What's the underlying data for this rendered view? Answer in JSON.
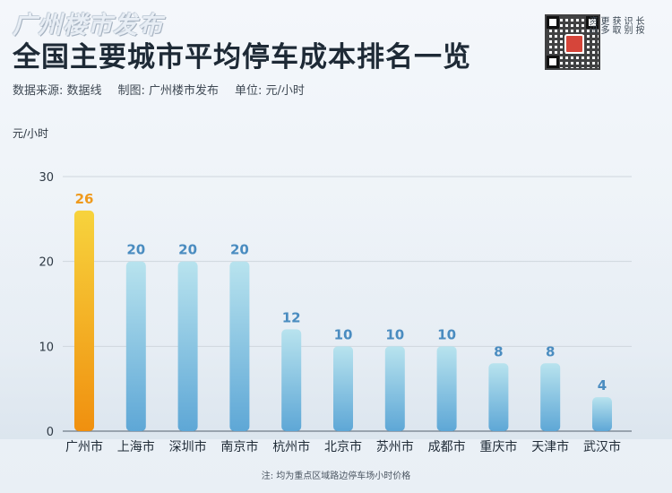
{
  "header": {
    "brand": "广州楼市发布",
    "title": "全国主要城市平均停车成本排名一览",
    "source": "数据来源: 数据线",
    "maker": "制图: 广州楼市发布",
    "unit": "单位:  元/小时"
  },
  "qr": {
    "hint_columns": [
      "长按",
      "识别",
      "获取",
      "更多",
      "资讯"
    ]
  },
  "footnote": "注:  均为重点区域路边停车场小时价格",
  "colors": {
    "highlight_top": "#f7d33d",
    "highlight_bottom": "#f0900f",
    "bar_top": "#b8e3ee",
    "bar_bottom": "#5ea7d6",
    "label_highlight": "#ef9a1d",
    "label_normal": "#4a8cc0"
  },
  "chart_data": {
    "type": "bar",
    "title": "全国主要城市平均停车成本排名一览",
    "ylabel": "元/小时",
    "xlabel": "",
    "ylim": [
      0,
      30
    ],
    "yticks": [
      0,
      10,
      20,
      30
    ],
    "grid": true,
    "highlight_index": 0,
    "categories": [
      "广州市",
      "上海市",
      "深圳市",
      "南京市",
      "杭州市",
      "北京市",
      "苏州市",
      "成都市",
      "重庆市",
      "天津市",
      "武汉市"
    ],
    "values": [
      26,
      20,
      20,
      20,
      12,
      10,
      10,
      10,
      8,
      8,
      4
    ]
  }
}
